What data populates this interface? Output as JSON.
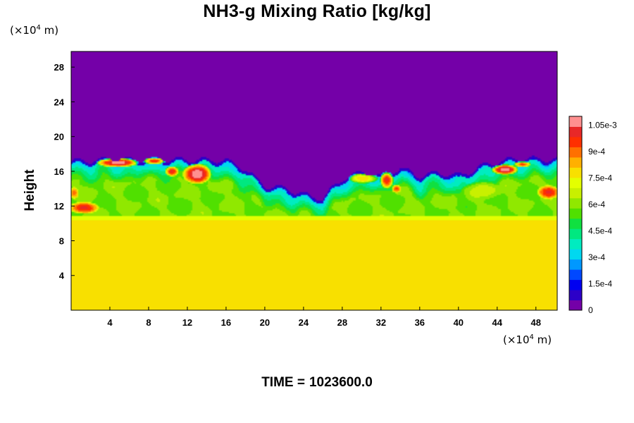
{
  "chart_data": {
    "type": "heatmap",
    "title": "NH3-g Mixing Ratio [kg/kg]",
    "ylabel": "Height",
    "xlabel": "",
    "y_unit": {
      "prefix": "(×10",
      "exp": "4",
      "suffix": " m)"
    },
    "x_unit": {
      "prefix": "(×10",
      "exp": "4",
      "suffix": " m)"
    },
    "x_range": [
      0,
      50.2
    ],
    "y_range": [
      0,
      29.8
    ],
    "x_ticks": [
      "4",
      "8",
      "12",
      "16",
      "20",
      "24",
      "28",
      "32",
      "36",
      "40",
      "44",
      "48"
    ],
    "x_tick_values": [
      4,
      8,
      12,
      16,
      20,
      24,
      28,
      32,
      36,
      40,
      44,
      48
    ],
    "y_ticks": [
      "4",
      "8",
      "12",
      "16",
      "20",
      "24",
      "28"
    ],
    "y_tick_values": [
      4,
      8,
      12,
      16,
      20,
      24,
      28
    ],
    "colorbar": {
      "range": [
        0,
        0.0011
      ],
      "labels": [
        "0",
        "1.5e-4",
        "3e-4",
        "4.5e-4",
        "6e-4",
        "7.5e-4",
        "9e-4",
        "1.05e-3"
      ],
      "label_values": [
        0,
        0.00015,
        0.0003,
        0.00045,
        0.0006,
        0.00075,
        0.0009,
        0.00105
      ],
      "colors": [
        "#7400a8",
        "#2c00c8",
        "#0000f0",
        "#0048ff",
        "#0098ff",
        "#00d8f0",
        "#00ecc0",
        "#00e880",
        "#10e040",
        "#50e000",
        "#90e800",
        "#c8f000",
        "#e4ff00",
        "#f8e000",
        "#ffb000",
        "#ff7000",
        "#ff3000",
        "#e82828",
        "#ff9090"
      ]
    },
    "field": {
      "background": 0.00078,
      "top_value": 0.0,
      "boundary_heights_x": [
        0,
        4,
        8,
        12,
        16,
        18,
        19.5,
        20,
        22,
        24,
        26,
        27,
        28,
        30,
        32,
        34,
        36,
        38,
        40,
        43,
        46,
        50.2
      ],
      "boundary_heights_y": [
        17.3,
        17.5,
        17.5,
        17.5,
        17.4,
        16.4,
        14.9,
        14.5,
        14.2,
        13.5,
        13.0,
        14.2,
        15.3,
        16.0,
        15.6,
        16.5,
        15.6,
        16.0,
        15.6,
        17.0,
        17.6,
        17.5
      ],
      "mixed_layer_base": 10.8,
      "hotspots": [
        {
          "x": 4.8,
          "y": 17.0,
          "rx": 2.2,
          "ry": 0.55,
          "v": 0.0011
        },
        {
          "x": 8.6,
          "y": 17.2,
          "rx": 1.2,
          "ry": 0.4,
          "v": 0.00098
        },
        {
          "x": 13.0,
          "y": 15.7,
          "rx": 1.5,
          "ry": 1.2,
          "v": 0.0011
        },
        {
          "x": 10.4,
          "y": 16.0,
          "rx": 0.7,
          "ry": 0.6,
          "v": 0.001
        },
        {
          "x": 1.3,
          "y": 11.8,
          "rx": 1.6,
          "ry": 0.7,
          "v": 0.001
        },
        {
          "x": 0.3,
          "y": 13.5,
          "rx": 0.5,
          "ry": 0.7,
          "v": 0.0009
        },
        {
          "x": 32.6,
          "y": 15.0,
          "rx": 0.7,
          "ry": 1.0,
          "v": 0.001
        },
        {
          "x": 33.6,
          "y": 14.0,
          "rx": 0.5,
          "ry": 0.5,
          "v": 0.00095
        },
        {
          "x": 44.8,
          "y": 16.2,
          "rx": 1.4,
          "ry": 0.6,
          "v": 0.0011
        },
        {
          "x": 46.6,
          "y": 16.8,
          "rx": 0.9,
          "ry": 0.35,
          "v": 0.00095
        },
        {
          "x": 49.3,
          "y": 13.6,
          "rx": 1.2,
          "ry": 0.8,
          "v": 0.001
        },
        {
          "x": 42.5,
          "y": 13.8,
          "rx": 2.2,
          "ry": 1.0,
          "v": 0.00066
        },
        {
          "x": 30.2,
          "y": 15.2,
          "rx": 1.6,
          "ry": 0.6,
          "v": 0.0008
        }
      ]
    }
  },
  "time_label": "TIME =",
  "time_value": "1023600.0"
}
